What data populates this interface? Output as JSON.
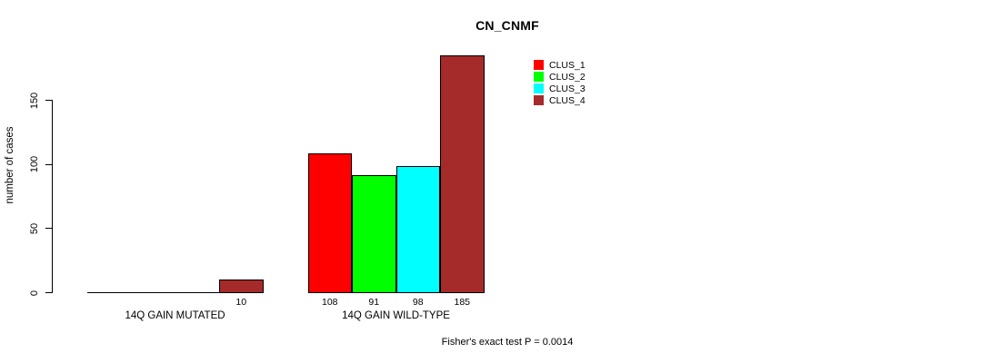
{
  "title": "CN_CNMF",
  "footer": "Fisher's exact test P = 0.0014",
  "y_axis": {
    "label": "number of cases",
    "ticks": [
      0,
      50,
      100,
      150
    ]
  },
  "legend": {
    "items": [
      {
        "label": "CLUS_1",
        "color": "#FF0000"
      },
      {
        "label": "CLUS_2",
        "color": "#00FF00"
      },
      {
        "label": "CLUS_3",
        "color": "#00FFFF"
      },
      {
        "label": "CLUS_4",
        "color": "#A52A2A"
      }
    ]
  },
  "chart_data": {
    "type": "bar",
    "title": "CN_CNMF",
    "xlabel": "",
    "ylabel": "number of cases",
    "ylim": [
      0,
      185
    ],
    "yticks": [
      0,
      50,
      100,
      150
    ],
    "grid": false,
    "legend_position": "top-right",
    "categories": [
      "14Q GAIN MUTATED",
      "14Q GAIN WILD-TYPE"
    ],
    "series": [
      {
        "name": "CLUS_1",
        "color": "#FF0000",
        "values": [
          0,
          108
        ]
      },
      {
        "name": "CLUS_2",
        "color": "#00FF00",
        "values": [
          0,
          91
        ]
      },
      {
        "name": "CLUS_3",
        "color": "#00FFFF",
        "values": [
          0,
          98
        ]
      },
      {
        "name": "CLUS_4",
        "color": "#A52A2A",
        "values": [
          10,
          185
        ]
      }
    ],
    "bar_value_labels": {
      "shown_when": "value > 0",
      "group_1": [
        "10"
      ],
      "group_2": [
        "108",
        "91",
        "98",
        "185"
      ]
    },
    "annotation": "Fisher's exact test P = 0.0014"
  }
}
